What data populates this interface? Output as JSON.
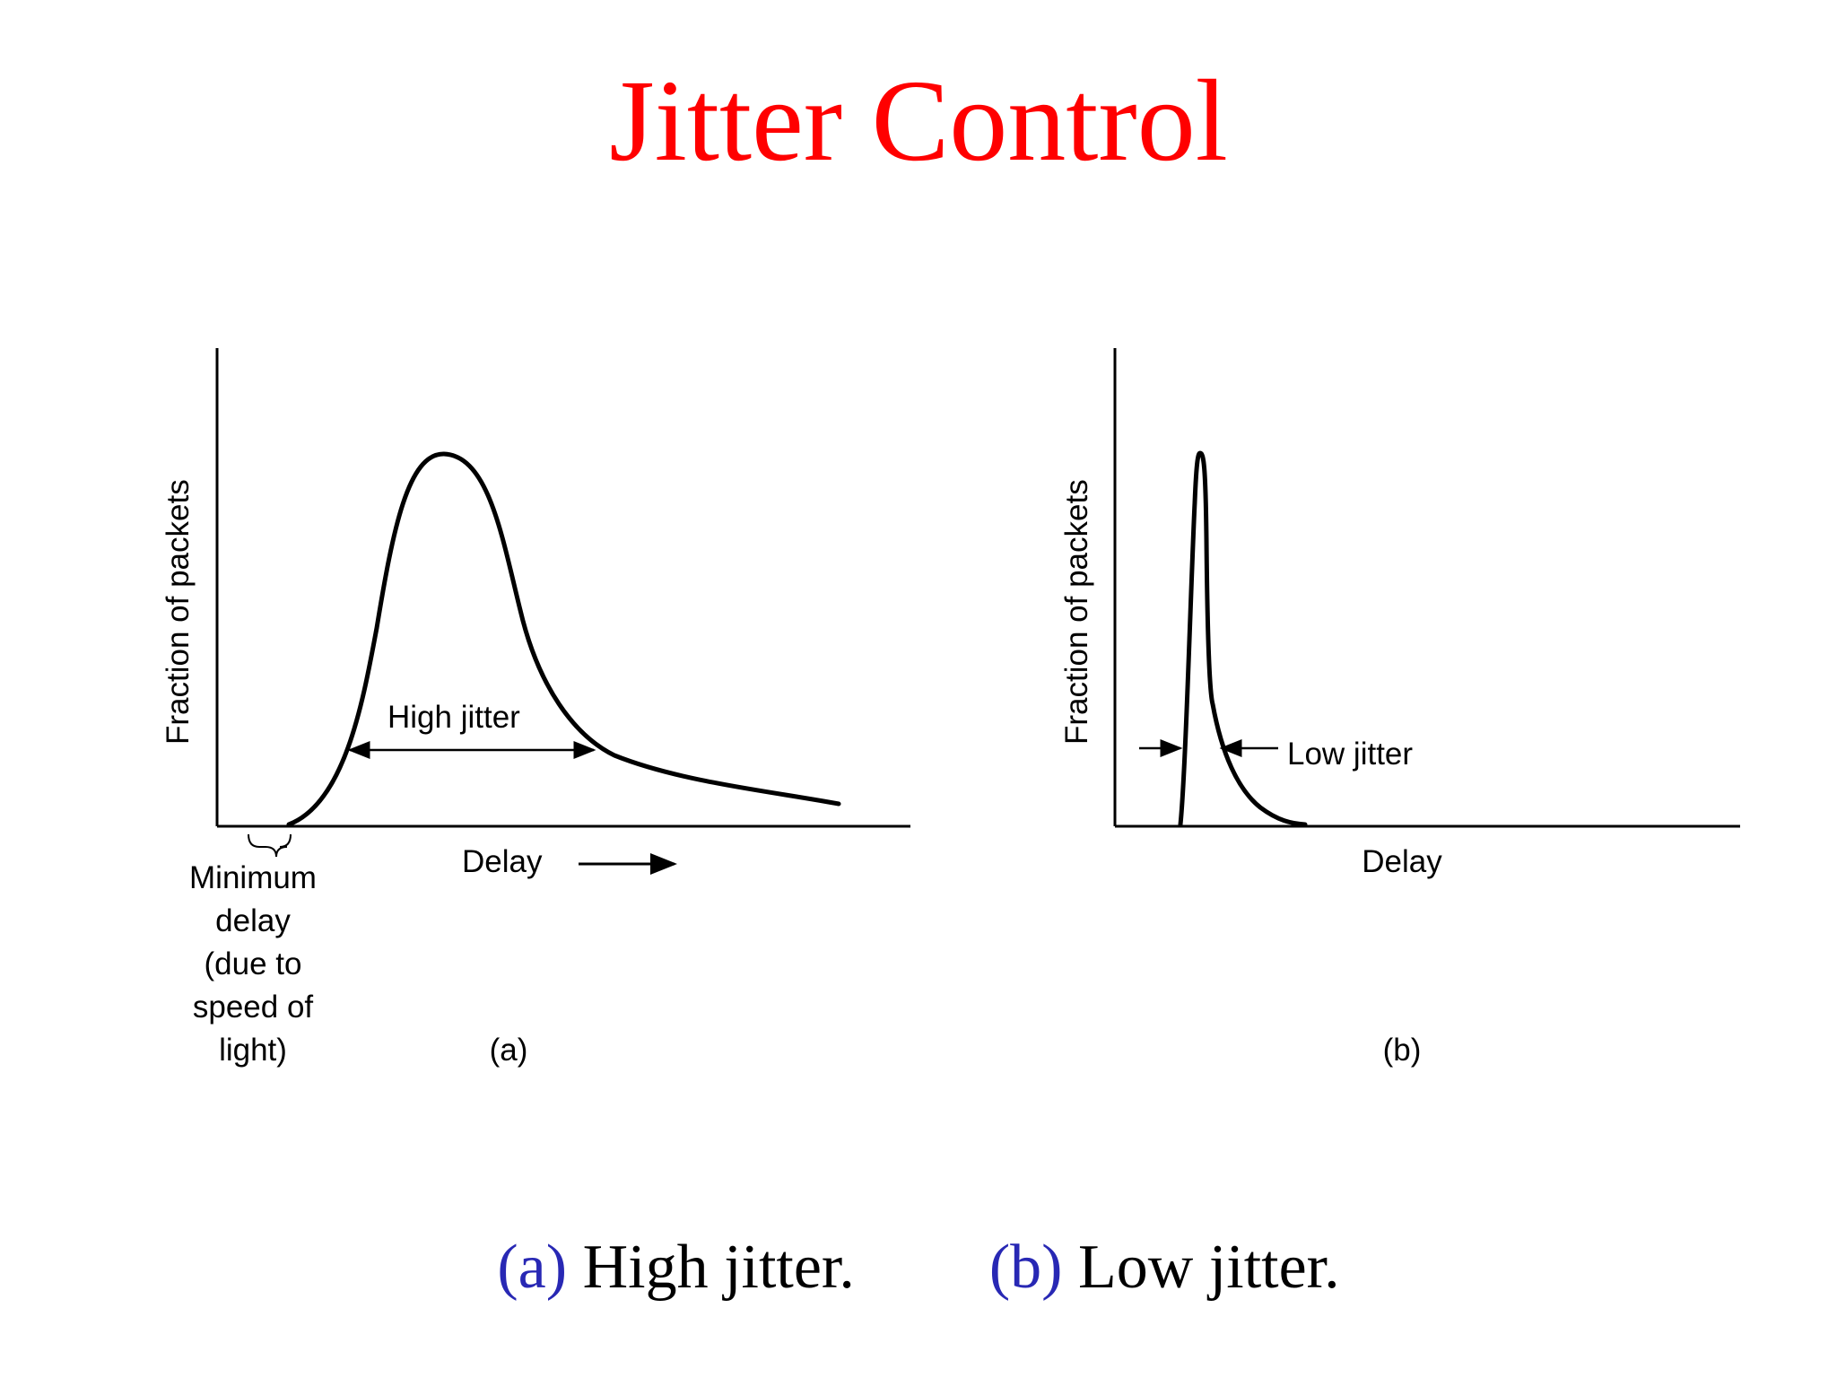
{
  "slide": {
    "title": "Jitter Control",
    "title_color": "#ff0000"
  },
  "figure_a": {
    "y_axis_label": "Fraction of packets",
    "x_axis_label": "Delay",
    "curve_label": "High jitter",
    "min_delay_label_lines": [
      "Minimum",
      "delay",
      "(due to",
      "speed of",
      "light)"
    ],
    "panel_label": "(a)"
  },
  "figure_b": {
    "y_axis_label": "Fraction of packets",
    "x_axis_label": "Delay",
    "curve_label": "Low jitter",
    "panel_label": "(b)"
  },
  "caption": {
    "a_tag": "(a)",
    "a_text": "High jitter.",
    "b_tag": "(b)",
    "b_text": "Low jitter.",
    "tag_color": "#2828b4"
  }
}
